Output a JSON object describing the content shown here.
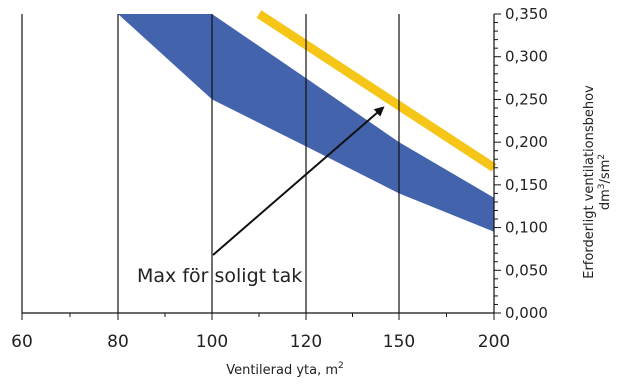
{
  "chart_data": {
    "type": "area",
    "xlabel_main": "Ventilerad yta, m",
    "xlabel_sup": "2",
    "ylabel_line1": "Erforderligt ventilationsbehov",
    "ylabel_line2_a": "dm",
    "ylabel_line2_sup1": "3",
    "ylabel_line2_b": "/sm",
    "ylabel_line2_sup2": "2",
    "x_ticks": [
      "60",
      "80",
      "100",
      "120",
      "150",
      "200"
    ],
    "y_ticks": [
      "0,000",
      "0,050",
      "0,100",
      "0,150",
      "0,200",
      "0,250",
      "0,300",
      "0,350"
    ],
    "ylim": [
      0,
      0.35
    ],
    "vertical_grid_at": [
      "80",
      "100",
      "120",
      "150"
    ],
    "band": {
      "color": "#4363ad",
      "upper": [
        [
          "80",
          0.35
        ],
        [
          "100",
          0.35
        ],
        [
          "120",
          0.275
        ],
        [
          "150",
          0.2
        ],
        [
          "200",
          0.135
        ]
      ],
      "lower": [
        [
          "80",
          0.35
        ],
        [
          "100",
          0.25
        ],
        [
          "120",
          0.195
        ],
        [
          "150",
          0.14
        ],
        [
          "200",
          0.095
        ]
      ]
    },
    "max_line": {
      "color": "#f5c518",
      "points": [
        [
          "110",
          0.35
        ],
        [
          "200",
          0.17
        ]
      ]
    },
    "annotation": {
      "text": "Max för soligt tak",
      "arrow_target": [
        "150",
        0.245
      ]
    }
  }
}
